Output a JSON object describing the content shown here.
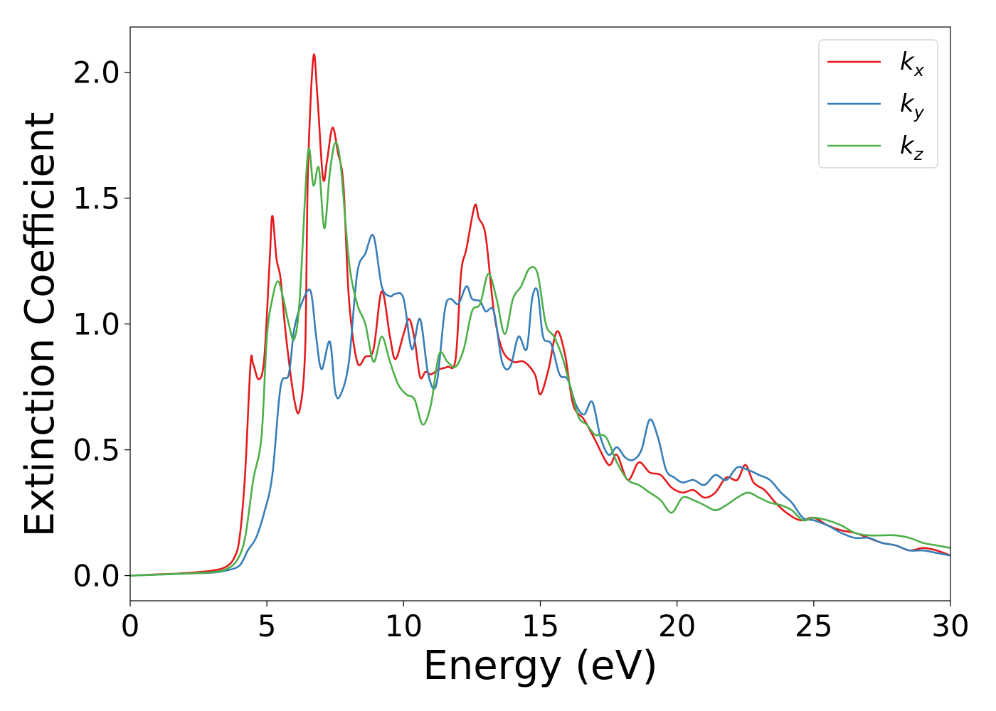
{
  "chart_data": {
    "type": "line",
    "xlabel": "Energy (eV)",
    "ylabel": "Extinction Coefficient",
    "xlim": [
      0,
      30
    ],
    "ylim": [
      -0.1,
      2.18
    ],
    "xticks": [
      0,
      5,
      10,
      15,
      20,
      25,
      30
    ],
    "yticks": [
      0.0,
      0.5,
      1.0,
      1.5,
      2.0
    ],
    "xtick_labels": [
      "0",
      "5",
      "10",
      "15",
      "20",
      "25",
      "30"
    ],
    "ytick_labels": [
      "0.0",
      "0.5",
      "1.0",
      "1.5",
      "2.0"
    ],
    "grid": false,
    "legend_position": "top-right",
    "series": [
      {
        "name": "k",
        "subscript": "x",
        "color": "#e41a1c",
        "x": [
          0,
          1,
          2,
          3,
          3.5,
          3.8,
          4.0,
          4.2,
          4.4,
          4.5,
          4.7,
          4.9,
          5.1,
          5.2,
          5.35,
          5.5,
          5.7,
          6.0,
          6.2,
          6.4,
          6.5,
          6.7,
          6.85,
          7.05,
          7.2,
          7.4,
          7.6,
          7.8,
          8.0,
          8.3,
          8.6,
          8.9,
          9.2,
          9.5,
          9.7,
          10.0,
          10.2,
          10.4,
          10.6,
          10.8,
          11.0,
          11.3,
          11.6,
          11.9,
          12.1,
          12.3,
          12.6,
          12.75,
          13.0,
          13.3,
          13.6,
          14.0,
          14.4,
          14.8,
          15.0,
          15.3,
          15.6,
          15.9,
          16.2,
          16.6,
          17.0,
          17.5,
          17.8,
          18.2,
          18.6,
          19.0,
          19.4,
          19.8,
          20.2,
          20.6,
          21.0,
          21.4,
          21.8,
          22.2,
          22.5,
          22.8,
          23.2,
          23.6,
          24.0,
          24.5,
          25.0,
          25.5,
          26.0,
          26.5,
          27.0,
          27.5,
          28.0,
          28.5,
          29.0,
          29.5,
          30.0
        ],
        "y": [
          0.0,
          0.005,
          0.01,
          0.02,
          0.035,
          0.07,
          0.15,
          0.4,
          0.84,
          0.84,
          0.78,
          0.86,
          1.25,
          1.43,
          1.26,
          1.18,
          0.95,
          0.7,
          0.66,
          0.9,
          1.6,
          2.06,
          1.9,
          1.58,
          1.65,
          1.78,
          1.68,
          1.55,
          1.1,
          0.85,
          0.87,
          0.9,
          1.13,
          0.95,
          0.86,
          0.96,
          1.02,
          0.94,
          0.79,
          0.81,
          0.8,
          0.82,
          0.83,
          0.86,
          1.2,
          1.3,
          1.47,
          1.42,
          1.35,
          1.05,
          0.9,
          0.85,
          0.85,
          0.8,
          0.72,
          0.82,
          0.97,
          0.88,
          0.68,
          0.62,
          0.54,
          0.44,
          0.48,
          0.38,
          0.45,
          0.41,
          0.4,
          0.35,
          0.33,
          0.34,
          0.31,
          0.33,
          0.39,
          0.38,
          0.44,
          0.37,
          0.34,
          0.29,
          0.25,
          0.22,
          0.23,
          0.2,
          0.18,
          0.17,
          0.15,
          0.13,
          0.12,
          0.1,
          0.11,
          0.1,
          0.08
        ]
      },
      {
        "name": "k",
        "subscript": "y",
        "color": "#377eb8",
        "x": [
          0,
          1,
          2,
          3,
          3.5,
          4.0,
          4.3,
          4.6,
          4.9,
          5.2,
          5.5,
          5.8,
          6.0,
          6.3,
          6.6,
          6.8,
          7.0,
          7.3,
          7.5,
          7.7,
          8.0,
          8.3,
          8.6,
          8.9,
          9.2,
          9.5,
          9.7,
          10.0,
          10.3,
          10.6,
          10.9,
          11.2,
          11.5,
          11.7,
          12.0,
          12.3,
          12.5,
          12.8,
          13.0,
          13.3,
          13.6,
          13.9,
          14.2,
          14.5,
          14.7,
          14.9,
          15.1,
          15.4,
          15.7,
          16.0,
          16.3,
          16.6,
          16.9,
          17.2,
          17.5,
          17.8,
          18.1,
          18.4,
          18.7,
          19.0,
          19.3,
          19.6,
          19.9,
          20.2,
          20.6,
          21.0,
          21.4,
          21.8,
          22.2,
          22.6,
          23.0,
          23.4,
          23.8,
          24.2,
          24.6,
          25.0,
          25.5,
          26.0,
          26.5,
          27.0,
          27.5,
          28.0,
          28.5,
          29.0,
          29.5,
          30.0
        ],
        "y": [
          0.0,
          0.004,
          0.008,
          0.012,
          0.02,
          0.04,
          0.1,
          0.15,
          0.25,
          0.4,
          0.75,
          0.8,
          0.98,
          1.09,
          1.13,
          0.95,
          0.82,
          0.93,
          0.73,
          0.72,
          0.85,
          1.2,
          1.28,
          1.35,
          1.15,
          1.11,
          1.12,
          1.1,
          0.9,
          1.02,
          0.8,
          0.76,
          1.05,
          1.1,
          1.08,
          1.15,
          1.1,
          1.09,
          1.05,
          1.05,
          0.85,
          0.83,
          0.95,
          0.9,
          1.1,
          1.13,
          0.95,
          0.92,
          0.8,
          0.78,
          0.68,
          0.64,
          0.69,
          0.55,
          0.48,
          0.51,
          0.47,
          0.46,
          0.5,
          0.62,
          0.55,
          0.42,
          0.39,
          0.37,
          0.38,
          0.36,
          0.4,
          0.38,
          0.43,
          0.42,
          0.4,
          0.38,
          0.33,
          0.29,
          0.23,
          0.22,
          0.2,
          0.17,
          0.15,
          0.15,
          0.13,
          0.12,
          0.1,
          0.1,
          0.09,
          0.08
        ]
      },
      {
        "name": "k",
        "subscript": "z",
        "color": "#4daf4a",
        "x": [
          0,
          1,
          2,
          3,
          3.5,
          3.9,
          4.2,
          4.5,
          4.8,
          5.0,
          5.2,
          5.4,
          5.6,
          5.8,
          6.0,
          6.2,
          6.5,
          6.7,
          6.9,
          7.1,
          7.3,
          7.5,
          7.7,
          8.0,
          8.3,
          8.6,
          8.9,
          9.2,
          9.5,
          9.8,
          10.1,
          10.4,
          10.7,
          11.0,
          11.3,
          11.6,
          11.9,
          12.2,
          12.5,
          12.8,
          13.1,
          13.4,
          13.7,
          14.0,
          14.3,
          14.6,
          14.9,
          15.2,
          15.5,
          15.8,
          16.1,
          16.4,
          16.7,
          17.0,
          17.4,
          17.8,
          18.2,
          18.6,
          19.0,
          19.4,
          19.8,
          20.2,
          20.6,
          21.0,
          21.4,
          21.8,
          22.2,
          22.6,
          23.0,
          23.4,
          23.8,
          24.2,
          24.6,
          25.0,
          25.5,
          26.0,
          26.5,
          27.0,
          27.5,
          28.0,
          28.5,
          29.0,
          29.5,
          30.0
        ],
        "y": [
          0.0,
          0.004,
          0.008,
          0.014,
          0.025,
          0.06,
          0.15,
          0.38,
          0.55,
          0.95,
          1.1,
          1.17,
          1.1,
          1.0,
          0.94,
          1.1,
          1.68,
          1.55,
          1.62,
          1.38,
          1.6,
          1.72,
          1.63,
          1.25,
          1.08,
          1.0,
          0.85,
          0.95,
          0.85,
          0.76,
          0.72,
          0.7,
          0.6,
          0.68,
          0.88,
          0.85,
          0.83,
          0.9,
          1.05,
          1.08,
          1.2,
          1.1,
          0.96,
          1.1,
          1.15,
          1.22,
          1.2,
          1.0,
          0.95,
          0.87,
          0.75,
          0.63,
          0.6,
          0.56,
          0.55,
          0.45,
          0.38,
          0.36,
          0.33,
          0.3,
          0.25,
          0.31,
          0.3,
          0.28,
          0.26,
          0.28,
          0.31,
          0.33,
          0.31,
          0.29,
          0.28,
          0.26,
          0.22,
          0.23,
          0.22,
          0.2,
          0.17,
          0.16,
          0.16,
          0.16,
          0.15,
          0.13,
          0.12,
          0.11
        ]
      }
    ]
  }
}
